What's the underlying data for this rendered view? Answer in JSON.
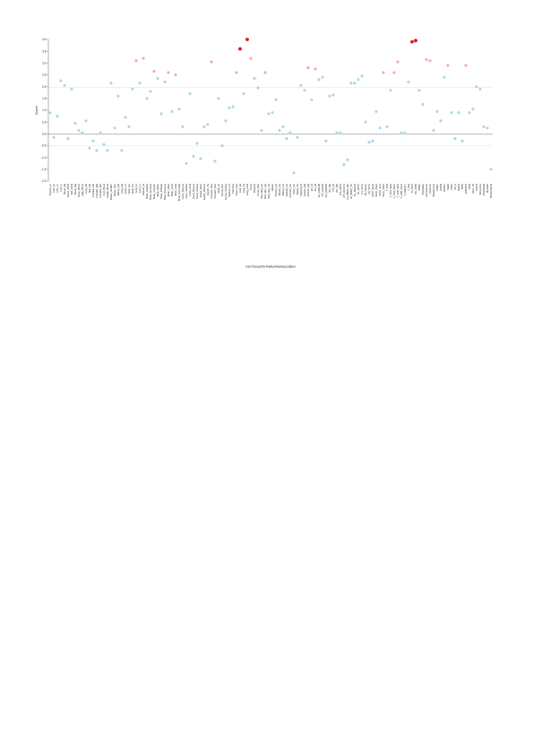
{
  "chart_data": {
    "type": "scatter",
    "xlabel": "Cell Tissue/Sh-PaRumbleAssociation",
    "ylabel": "Zscore",
    "ylim": [
      -2.0,
      4.0
    ],
    "yticks": [
      "4.0",
      "3.5",
      "3.0",
      "2.5",
      "2.0",
      "1.5",
      "1.0",
      "0.5",
      "0.0",
      "-0.5",
      "-1.0",
      "-1.5",
      "-2.0"
    ],
    "reference_lines": [
      1.96,
      0,
      -0.5
    ],
    "colors": {
      "low": "#a9d7e4",
      "mid": "#f0a7b4",
      "high": "#e0141e",
      "zero_line": "#888888",
      "ref_line": "#d8d8d8"
    },
    "values": [
      0.9,
      -0.15,
      0.75,
      2.25,
      2.05,
      -0.2,
      1.9,
      0.45,
      0.15,
      0.05,
      0.55,
      -0.6,
      -0.3,
      -0.7,
      0.05,
      -0.45,
      -0.7,
      2.15,
      0.25,
      1.6,
      -0.7,
      0.7,
      0.3,
      1.9,
      3.1,
      2.15,
      3.2,
      1.5,
      1.8,
      2.65,
      2.35,
      0.85,
      2.2,
      2.6,
      0.95,
      2.5,
      1.05,
      0.3,
      -1.25,
      1.7,
      -0.95,
      -0.4,
      -1.05,
      0.3,
      0.4,
      3.05,
      -1.15,
      1.5,
      -0.5,
      0.55,
      1.1,
      1.15,
      2.6,
      3.6,
      1.7,
      4.0,
      3.2,
      2.35,
      1.95,
      0.15,
      2.6,
      0.85,
      0.9,
      1.45,
      0.15,
      0.3,
      -0.2,
      0.05,
      -1.65,
      -0.15,
      2.05,
      1.85,
      2.8,
      1.45,
      2.75,
      2.3,
      2.4,
      -0.3,
      1.6,
      1.65,
      0.05,
      0.05,
      -1.3,
      -1.1,
      2.15,
      2.15,
      2.3,
      2.45,
      0.5,
      -0.35,
      -0.3,
      0.95,
      0.25,
      2.6,
      0.3,
      1.85,
      2.6,
      3.05,
      0.05,
      0.05,
      2.2,
      3.9,
      3.95,
      1.85,
      1.25,
      3.15,
      3.1,
      0.15,
      0.95,
      0.55,
      2.4,
      2.9,
      0.9,
      -0.2,
      0.9,
      -0.3,
      2.9,
      0.9,
      1.05,
      2.0,
      1.9,
      0.3,
      0.25,
      -1.5
    ],
    "categories": [
      "Thymus_Ht",
      "HSC_Ht",
      "HSC_Ct",
      "Liver_F",
      "Blood_Mg",
      "Blood_CD34",
      "BM_CD34",
      "Tbone_Mg",
      "Bone_MSCs",
      "Adip_MSCs",
      "Lung_Fib",
      "Skin_Fib",
      "Foreskin_Fib",
      "Foreskin_Mel",
      "Foreskin_Ker",
      "Cord_Blood",
      "Periph_Blood",
      "Breast_vHMEC",
      "Breast_Myo",
      "Kidney_Epi",
      "Lung_Epi",
      "Heart_LV",
      "Heart_RA",
      "Heart_RV",
      "Aorta_Ht",
      "Aorta_Lv",
      "Adrenal_Gl",
      "Brain_Angular",
      "Brain_AntCaud",
      "Brain_CingGyr",
      "Brain_Hippo",
      "Brain_InfTemp",
      "Brain_DorsoLat",
      "Brain_Subst",
      "Brain_Germ",
      "Brain_Fetal",
      "Brain_NeuroSph",
      "Colon_Mucosa",
      "Colon_SmMus",
      "Colon_Fetal",
      "Duod_Mucosa",
      "Duod_SmMus",
      "Esoph_Musc",
      "Esoph_Mucosa",
      "Gastric_Tis",
      "Stomach_Mus",
      "Stomach_Muc",
      "Small_Int",
      "Rectal_Muc",
      "Rectal_SmMus",
      "Sigmoid_Col",
      "Pancreas",
      "Pancr_Islet",
      "Liver_Ad",
      "Lung_Ad",
      "Lung_Fetal",
      "Ovary",
      "Placenta",
      "Psoas_Mus",
      "Skel_Mus_Fet",
      "Skel_Mus_Leg",
      "Skel_Mus_Tru",
      "Spleen",
      "Thymus_Fet",
      "Muscle_Fet",
      "Kidney_Fet",
      "Adrenal_Fet",
      "Stomach_Fet",
      "Heart_Fet",
      "Spinal_Fet",
      "Placental_B",
      "Amnion_Epi",
      "Chorion_Epi",
      "ES_H1",
      "ES_H9",
      "ES_HUES48",
      "ES_HUES6",
      "ES_HUES64",
      "iPS_15b",
      "iPS_18",
      "iPS_20b",
      "iPS_DF6.9",
      "iPS_DF19.11",
      "H1_BMP4_Der",
      "H1_BMP4_Tro",
      "H1_Mesend",
      "H1_MSCs",
      "H1_NPCs",
      "H9_Neuron",
      "H9_NPCs",
      "hESC_Endo",
      "hESC_Meso",
      "hESC_Ecto",
      "Mono_CD14",
      "T_CD3",
      "T_CD4_Mem",
      "T_CD4_Naive",
      "T_CD8_Mem",
      "T_CD8_Naive",
      "T_Helper17",
      "T_Reg",
      "B_CD19",
      "NK_CD56",
      "PBMC",
      "Osteoblast",
      "Chondrocyte",
      "Astrocyte",
      "Keratinocyte",
      "HMEC",
      "HSMM",
      "HUVEC",
      "NHEK",
      "NHLF",
      "NH_A",
      "HepG2",
      "K562",
      "GM12878",
      "A549",
      "HeLa_S3",
      "Dnd41",
      "Monocytes",
      "Endothelial",
      "Myotube",
      "Mesenchymal"
    ]
  }
}
